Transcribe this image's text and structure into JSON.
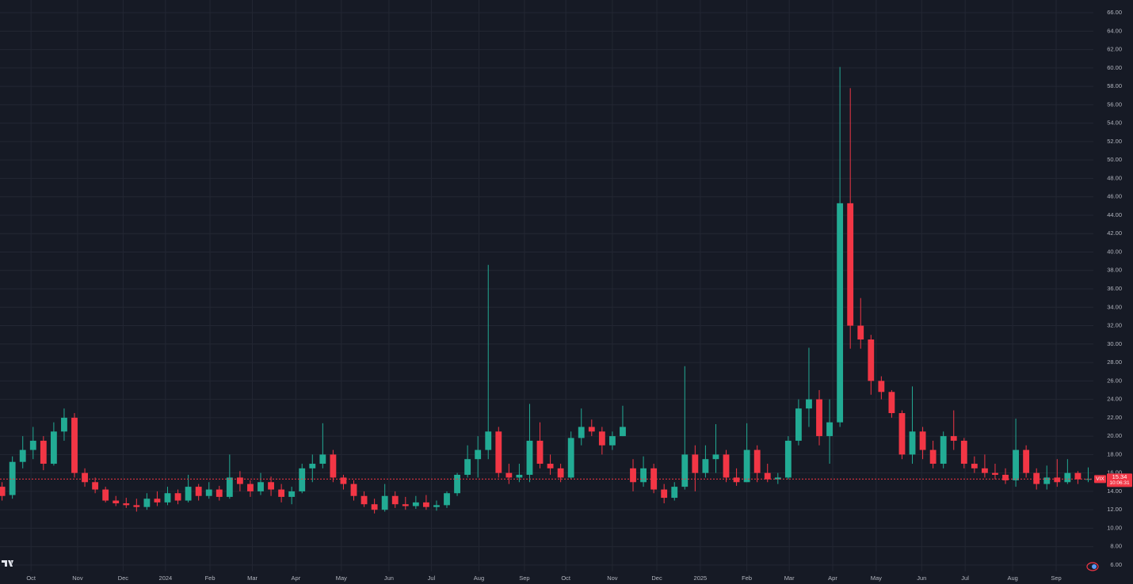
{
  "chart_data": {
    "type": "candlestick",
    "symbol": "VIX",
    "open": [
      14.5,
      13.6,
      17.2,
      18.5,
      19.5,
      17,
      20.5,
      22,
      16,
      15,
      14.2,
      13,
      12.7,
      12.5,
      12.3,
      13.2,
      12.8,
      13.8,
      13,
      14.5,
      13.5,
      14.2,
      13.4,
      15.5,
      14.8,
      14,
      15,
      14.2,
      13.4,
      14,
      16.5,
      17,
      18,
      15.5,
      14.8,
      13.5,
      12.6,
      12,
      13.5,
      12.6,
      12.4,
      12.8,
      12.3,
      12.5,
      13.8,
      15.8,
      17.5,
      18.5,
      20.5,
      16,
      15.5,
      15.8,
      19.5,
      17,
      16.5,
      15.5,
      19.8,
      21,
      20.5,
      19,
      20,
      16.5,
      15,
      16.5,
      14.2,
      13.3,
      14.5,
      18,
      16,
      17.5,
      18,
      15.5,
      15,
      18.5,
      16,
      15.3,
      15.5,
      19.5,
      23,
      24,
      20,
      21.5,
      45.3,
      32,
      30.5,
      26,
      24.8,
      22.5,
      18,
      20.5,
      18.5,
      17,
      20,
      19.5,
      17,
      16.5,
      16,
      15.8,
      15.2,
      18.5,
      16,
      14.8,
      15.5,
      15,
      16,
      15.3
    ],
    "high": [
      15,
      17.8,
      20,
      21,
      20,
      21.5,
      23,
      22.5,
      16.5,
      15.5,
      14.5,
      13.5,
      13.3,
      13.2,
      13.8,
      14,
      14.5,
      14.2,
      15.8,
      14.8,
      15,
      14.6,
      18,
      16.2,
      15.2,
      16,
      15.6,
      14.8,
      14.5,
      17,
      18,
      21.4,
      18.5,
      15.8,
      15.2,
      14,
      13.2,
      14.8,
      14,
      13.4,
      13.5,
      13.6,
      13,
      14,
      16,
      19,
      20,
      38.6,
      21,
      17,
      17,
      23.5,
      21.5,
      18,
      17,
      20.5,
      23,
      21.8,
      21,
      20.5,
      23.3,
      17.5,
      17.8,
      17,
      14.8,
      15,
      27.6,
      19,
      19,
      21.3,
      18.5,
      16.5,
      21.4,
      19,
      17,
      16,
      20,
      24,
      29.6,
      25,
      24,
      60.1,
      57.8,
      35,
      31,
      26.5,
      25,
      22.8,
      25.4,
      21,
      19.5,
      20.5,
      22.8,
      19.8,
      17.8,
      18,
      17,
      16.5,
      21.9,
      19,
      16.5,
      16.8,
      17.5,
      17.5,
      16.2,
      16.6
    ],
    "low": [
      13,
      13.2,
      16.5,
      17.5,
      16.3,
      16.8,
      19.5,
      15.5,
      14.5,
      13.8,
      12.8,
      12.4,
      12.2,
      11.8,
      12,
      12.4,
      12.5,
      12.6,
      12.8,
      13,
      13.2,
      13,
      13.2,
      14,
      13.4,
      13.6,
      13.5,
      12.8,
      12.6,
      13.8,
      15,
      16.5,
      15,
      14.2,
      13,
      12.3,
      11.6,
      11.8,
      12.2,
      12,
      12.1,
      12,
      11.9,
      12.2,
      13.5,
      15.5,
      15.5,
      17.5,
      15.5,
      14.8,
      15,
      15,
      16.5,
      15.8,
      15,
      15.3,
      19,
      20,
      18,
      18.5,
      20,
      14,
      14.5,
      13.8,
      12.7,
      13,
      14.2,
      14,
      15.5,
      16,
      15,
      14.6,
      15,
      15,
      15,
      14.8,
      15.3,
      19,
      21,
      19,
      17,
      21,
      29.5,
      29.5,
      24.5,
      24,
      22,
      17.5,
      17,
      17.5,
      16.5,
      16.5,
      18.5,
      16.5,
      16,
      15.5,
      15.3,
      14.8,
      14.5,
      15.5,
      14.2,
      14.2,
      14.5,
      14.8,
      14.8,
      15
    ],
    "close": [
      13.5,
      17.2,
      18.5,
      19.5,
      17,
      20.5,
      22,
      16,
      15,
      14.2,
      13,
      12.7,
      12.5,
      12.3,
      13.2,
      12.8,
      13.8,
      13,
      14.5,
      13.5,
      14.2,
      13.4,
      15.5,
      14.8,
      14,
      15,
      14.2,
      13.4,
      14,
      16.5,
      17,
      18,
      15.5,
      14.8,
      13.5,
      12.6,
      12,
      13.5,
      12.6,
      12.4,
      12.8,
      12.3,
      12.5,
      13.8,
      15.8,
      17.5,
      18.5,
      20.5,
      16,
      15.5,
      15.8,
      19.5,
      17,
      16.5,
      15.5,
      19.8,
      21,
      20.5,
      19,
      20,
      21,
      15,
      16.5,
      14.2,
      13.3,
      14.5,
      18,
      16,
      17.5,
      18,
      15.5,
      15,
      18.5,
      16,
      15.3,
      15.5,
      19.5,
      23,
      24,
      20,
      21.5,
      45.3,
      32,
      30.5,
      26,
      24.8,
      22.5,
      18,
      20.5,
      18.5,
      17,
      20,
      19.5,
      17,
      16.5,
      16,
      15.8,
      15.2,
      18.5,
      16,
      14.8,
      15.5,
      15,
      16,
      15.3,
      15.34
    ],
    "up_color": "#22ab94",
    "down_color": "#f23645",
    "xlim": [
      -0.2,
      105.5
    ],
    "xticks": [
      {
        "value": 2.8,
        "label": "Oct"
      },
      {
        "value": 7.3,
        "label": "Nov"
      },
      {
        "value": 11.7,
        "label": "Dec"
      },
      {
        "value": 15.8,
        "label": "2024"
      },
      {
        "value": 20.1,
        "label": "Feb"
      },
      {
        "value": 24.2,
        "label": "Mar"
      },
      {
        "value": 28.4,
        "label": "Apr"
      },
      {
        "value": 32.8,
        "label": "May"
      },
      {
        "value": 37.4,
        "label": "Jun"
      },
      {
        "value": 41.5,
        "label": "Jul"
      },
      {
        "value": 46.1,
        "label": "Aug"
      },
      {
        "value": 50.5,
        "label": "Sep"
      },
      {
        "value": 54.5,
        "label": "Oct"
      },
      {
        "value": 59.0,
        "label": "Nov"
      },
      {
        "value": 63.3,
        "label": "Dec"
      },
      {
        "value": 67.5,
        "label": "2025"
      },
      {
        "value": 72.0,
        "label": "Feb"
      },
      {
        "value": 76.1,
        "label": "Mar"
      },
      {
        "value": 80.3,
        "label": "Apr"
      },
      {
        "value": 84.5,
        "label": "May"
      },
      {
        "value": 88.9,
        "label": "Jun"
      },
      {
        "value": 93.1,
        "label": "Jul"
      },
      {
        "value": 97.7,
        "label": "Aug"
      },
      {
        "value": 101.9,
        "label": "Sep"
      }
    ],
    "ylim": [
      5.31,
      67.38
    ],
    "yticks": [
      {
        "value": 6,
        "label": "6.00"
      },
      {
        "value": 8,
        "label": "8.00"
      },
      {
        "value": 10,
        "label": "10.00"
      },
      {
        "value": 12,
        "label": "12.00"
      },
      {
        "value": 14,
        "label": "14.00"
      },
      {
        "value": 16,
        "label": "16.00"
      },
      {
        "value": 18,
        "label": "18.00"
      },
      {
        "value": 20,
        "label": "20.00"
      },
      {
        "value": 22,
        "label": "22.00"
      },
      {
        "value": 24,
        "label": "24.00"
      },
      {
        "value": 26,
        "label": "26.00"
      },
      {
        "value": 28,
        "label": "28.00"
      },
      {
        "value": 30,
        "label": "30.00"
      },
      {
        "value": 32,
        "label": "32.00"
      },
      {
        "value": 34,
        "label": "34.00"
      },
      {
        "value": 36,
        "label": "36.00"
      },
      {
        "value": 38,
        "label": "38.00"
      },
      {
        "value": 40,
        "label": "40.00"
      },
      {
        "value": 42,
        "label": "42.00"
      },
      {
        "value": 44,
        "label": "44.00"
      },
      {
        "value": 46,
        "label": "46.00"
      },
      {
        "value": 48,
        "label": "48.00"
      },
      {
        "value": 50,
        "label": "50.00"
      },
      {
        "value": 52,
        "label": "52.00"
      },
      {
        "value": 54,
        "label": "54.00"
      },
      {
        "value": 56,
        "label": "56.00"
      },
      {
        "value": 58,
        "label": "58.00"
      },
      {
        "value": 60,
        "label": "60.00"
      },
      {
        "value": 62,
        "label": "62.00"
      },
      {
        "value": 64,
        "label": "64.00"
      },
      {
        "value": 66,
        "label": "66.00"
      }
    ],
    "grid": true,
    "last_price": 15.34,
    "countdown": "10:06:31"
  }
}
